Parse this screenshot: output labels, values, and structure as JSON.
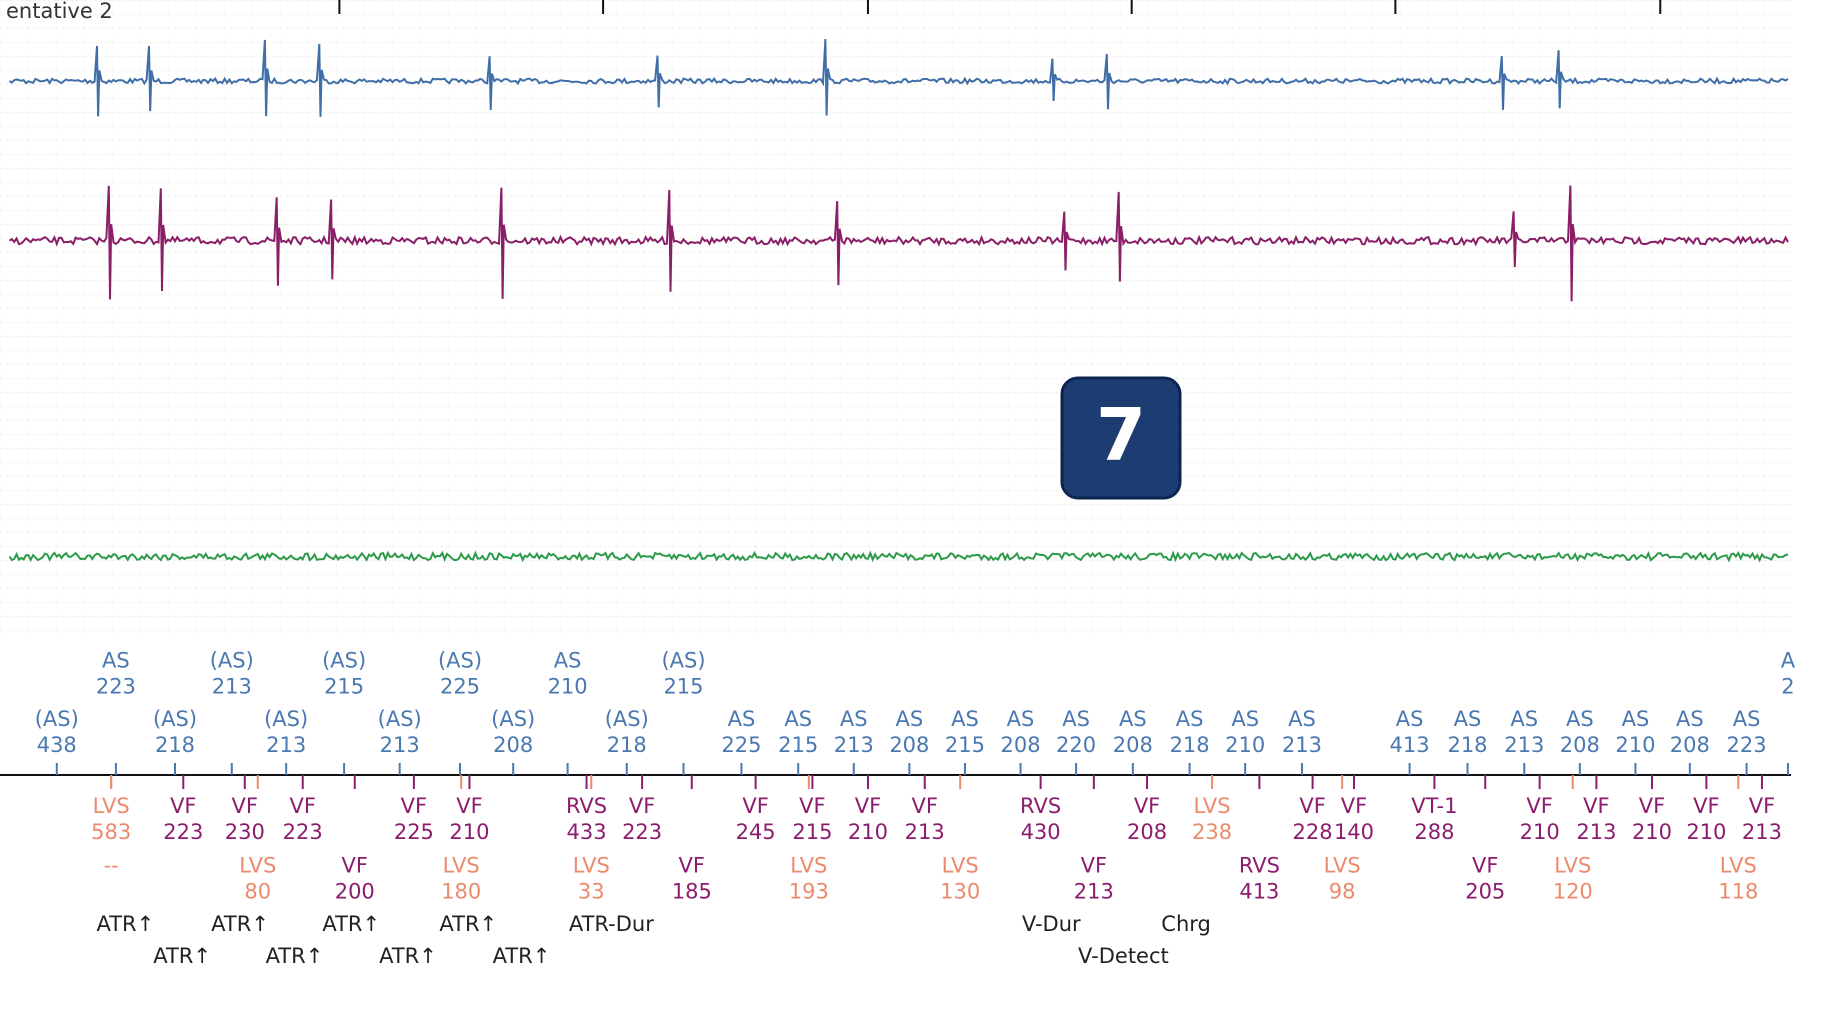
{
  "header": {
    "title": "entative 2"
  },
  "badge": "7",
  "atrial_row_1": [
    {
      "label": "AS",
      "interval": 223
    },
    {
      "label": "(AS)",
      "interval": 213
    },
    {
      "label": "(AS)",
      "interval": 215
    },
    {
      "label": "(AS)",
      "interval": 225
    },
    {
      "label": "AS",
      "interval": 210
    },
    {
      "label": "(AS)",
      "interval": 215
    },
    {
      "label": "A",
      "interval": 2
    }
  ],
  "atrial_row_2": [
    {
      "label": "(AS)",
      "interval": 438
    },
    {
      "label": "(AS)",
      "interval": 218
    },
    {
      "label": "(AS)",
      "interval": 213
    },
    {
      "label": "(AS)",
      "interval": 213
    },
    {
      "label": "(AS)",
      "interval": 208
    },
    {
      "label": "(AS)",
      "interval": 218
    },
    {
      "label": "AS",
      "interval": 225
    },
    {
      "label": "AS",
      "interval": 215
    },
    {
      "label": "AS",
      "interval": 213
    },
    {
      "label": "AS",
      "interval": 208
    },
    {
      "label": "AS",
      "interval": 215
    },
    {
      "label": "AS",
      "interval": 208
    },
    {
      "label": "AS",
      "interval": 220
    },
    {
      "label": "AS",
      "interval": 208
    },
    {
      "label": "AS",
      "interval": 218
    },
    {
      "label": "AS",
      "interval": 210
    },
    {
      "label": "AS",
      "interval": 213
    },
    {
      "label": "AS",
      "interval": 413
    },
    {
      "label": "AS",
      "interval": 218
    },
    {
      "label": "AS",
      "interval": 213
    },
    {
      "label": "AS",
      "interval": 208
    },
    {
      "label": "AS",
      "interval": 210
    },
    {
      "label": "AS",
      "interval": 208
    },
    {
      "label": "AS",
      "interval": 223
    }
  ],
  "ventricular_row_1": [
    {
      "label": "LVS",
      "interval": 583
    },
    {
      "label": "VF",
      "interval": 223
    },
    {
      "label": "VF",
      "interval": 230
    },
    {
      "label": "VF",
      "interval": 223
    },
    {
      "label": "VF",
      "interval": 225
    },
    {
      "label": "VF",
      "interval": 210
    },
    {
      "label": "RVS",
      "interval": 433
    },
    {
      "label": "VF",
      "interval": 223
    },
    {
      "label": "VF",
      "interval": 245
    },
    {
      "label": "VF",
      "interval": 215
    },
    {
      "label": "VF",
      "interval": 210
    },
    {
      "label": "VF",
      "interval": 213
    },
    {
      "label": "RVS",
      "interval": 430
    },
    {
      "label": "VF",
      "interval": 208
    },
    {
      "label": "LVS",
      "interval": 238
    },
    {
      "label": "VF",
      "interval": 228
    },
    {
      "label": "VF",
      "interval": 140
    },
    {
      "label": "VT-1",
      "interval": 288
    },
    {
      "label": "VF",
      "interval": 210
    },
    {
      "label": "VF",
      "interval": 213
    },
    {
      "label": "VF",
      "interval": 210
    },
    {
      "label": "VF",
      "interval": 210
    },
    {
      "label": "VF",
      "interval": 213
    }
  ],
  "ventricular_row_2": [
    {
      "label": "--"
    },
    {
      "label": "LVS",
      "interval": 80
    },
    {
      "label": "VF",
      "interval": 200
    },
    {
      "label": "LVS",
      "interval": 180
    },
    {
      "label": "LVS",
      "interval": 33
    },
    {
      "label": "VF",
      "interval": 185
    },
    {
      "label": "LVS",
      "interval": 193
    },
    {
      "label": "LVS",
      "interval": 130
    },
    {
      "label": "VF",
      "interval": 213
    },
    {
      "label": "RVS",
      "interval": 413
    },
    {
      "label": "LVS",
      "interval": 98
    },
    {
      "label": "VF",
      "interval": 205
    },
    {
      "label": "LVS",
      "interval": 120
    },
    {
      "label": "LVS",
      "interval": 118
    }
  ],
  "events_row_1": [
    "ATR↑",
    "ATR↑",
    "ATR↑",
    "ATR↑",
    "ATR-Dur",
    "V-Dur",
    "Chrg"
  ],
  "events_row_2": [
    "ATR↑",
    "ATR↑",
    "ATR↑",
    "ATR↑",
    "V-Detect"
  ]
}
